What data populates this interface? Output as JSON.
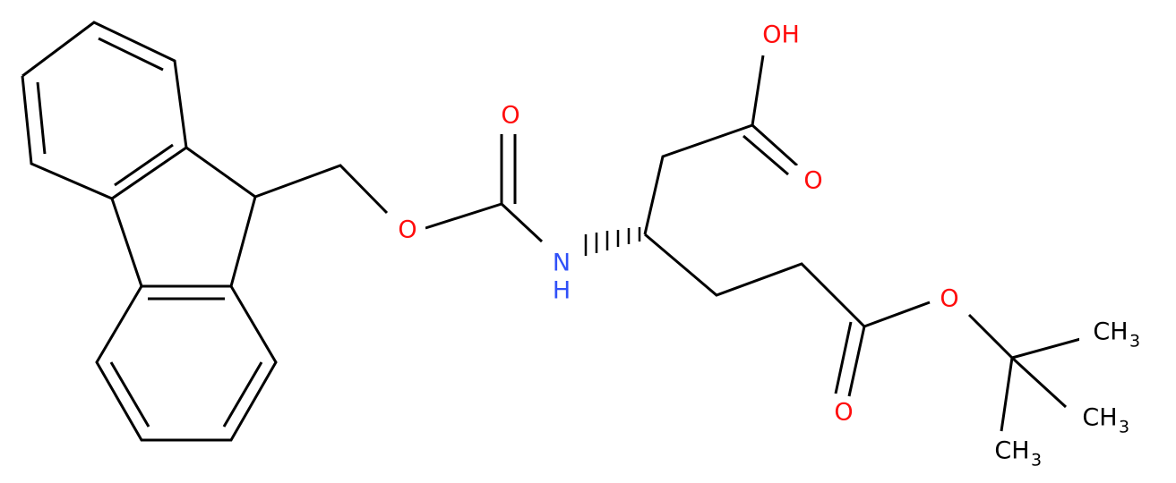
{
  "atoms": [
    {
      "label": "OH"
    },
    {
      "label": "O"
    },
    {
      "label": "O"
    },
    {
      "label": "O"
    },
    {
      "label": "N",
      "sub_label": "H"
    },
    {
      "label": "O"
    },
    {
      "label": "O"
    },
    {
      "label": "CH",
      "subscript": "3"
    },
    {
      "label": "CH",
      "subscript": "3"
    },
    {
      "label": "CH",
      "subscript": "3"
    }
  ]
}
